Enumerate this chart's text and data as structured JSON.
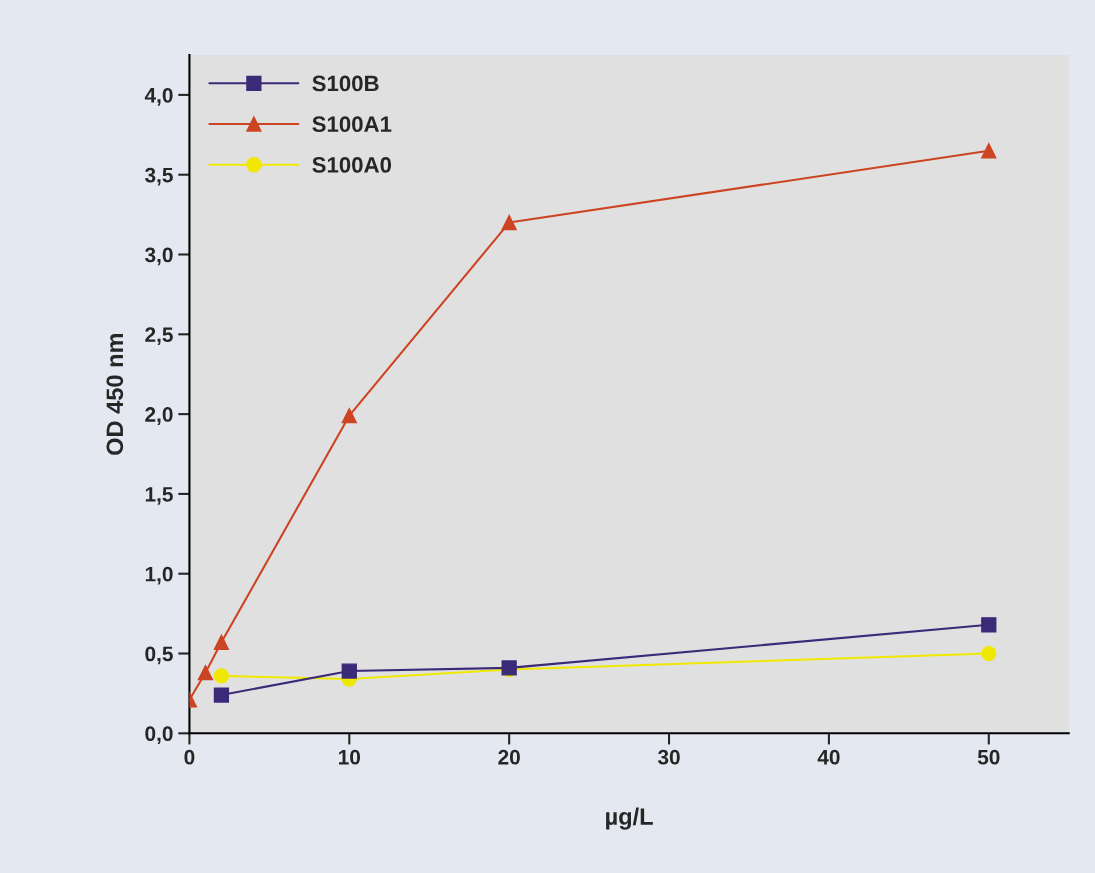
{
  "chart_data": {
    "type": "line",
    "xlabel": "µg/L",
    "ylabel": "OD 450 nm",
    "xlim": [
      0,
      55
    ],
    "ylim": [
      0,
      4.25
    ],
    "xticks": [
      0,
      10,
      20,
      30,
      40,
      50
    ],
    "yticks": [
      {
        "value": 0,
        "label": "0,0"
      },
      {
        "value": 0.5,
        "label": "0,5"
      },
      {
        "value": 1,
        "label": "1,0"
      },
      {
        "value": 1.5,
        "label": "1,5"
      },
      {
        "value": 2,
        "label": "2,0"
      },
      {
        "value": 2.5,
        "label": "2,5"
      },
      {
        "value": 3,
        "label": "3,0"
      },
      {
        "value": 3.5,
        "label": "3,5"
      },
      {
        "value": 4,
        "label": "4,0"
      }
    ],
    "grid": false,
    "legend": "top left",
    "line_style": "solid",
    "series": [
      {
        "name": "S100B",
        "color": "#3b2a78",
        "marker": "square",
        "x": [
          2,
          10,
          20,
          50
        ],
        "values": [
          0.24,
          0.39,
          0.41,
          0.68
        ]
      },
      {
        "name": "S100A1",
        "color": "#cc4422",
        "marker": "triangle",
        "x": [
          0,
          1,
          2,
          10,
          20,
          50
        ],
        "values": [
          0.21,
          0.38,
          0.57,
          1.99,
          3.2,
          3.65
        ]
      },
      {
        "name": "S100A0",
        "color": "#f0e800",
        "marker": "circle",
        "x": [
          2,
          10,
          20,
          50
        ],
        "values": [
          0.36,
          0.34,
          0.4,
          0.5
        ]
      }
    ]
  }
}
